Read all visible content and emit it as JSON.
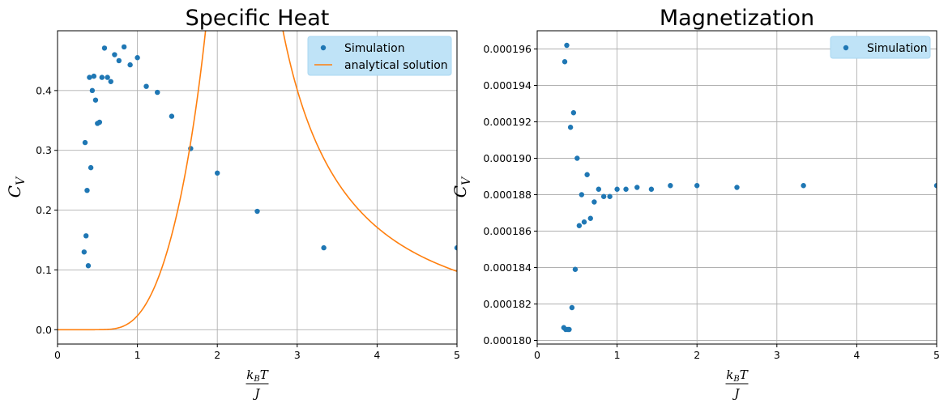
{
  "chart_data": [
    {
      "type": "scatter",
      "title": "Specific Heat",
      "xlabel": "k_BT/J",
      "ylabel": "C_V",
      "xlim": [
        0,
        5
      ],
      "ylim": [
        -0.024,
        0.5
      ],
      "xticks": [
        "0",
        "1",
        "2",
        "3",
        "4",
        "5"
      ],
      "yticks": [
        "0.0",
        "0.1",
        "0.2",
        "0.3",
        "0.4"
      ],
      "grid": true,
      "legend": {
        "position": "top-right",
        "entries": [
          "Simulation",
          "analytical solution"
        ]
      },
      "series": [
        {
          "name": "Simulation",
          "kind": "points",
          "color": "#1f77b4",
          "x": [
            0.333,
            0.345,
            0.357,
            0.37,
            0.385,
            0.4,
            0.417,
            0.435,
            0.455,
            0.476,
            0.5,
            0.526,
            0.556,
            0.588,
            0.625,
            0.667,
            0.714,
            0.769,
            0.833,
            0.909,
            1.0,
            1.111,
            1.25,
            1.429,
            1.667,
            2.0,
            2.5,
            3.333,
            5.0
          ],
          "y": [
            0.13,
            0.313,
            0.157,
            0.233,
            0.107,
            0.422,
            0.271,
            0.4,
            0.424,
            0.384,
            0.345,
            0.347,
            0.422,
            0.471,
            0.422,
            0.415,
            0.46,
            0.45,
            0.473,
            0.443,
            0.455,
            0.407,
            0.397,
            0.357,
            0.303,
            0.262,
            0.198,
            0.137,
            0.137
          ]
        },
        {
          "name": "analytical solution",
          "kind": "line",
          "color": "#ff7f0e",
          "function": "2D Ising exact specific heat"
        }
      ]
    },
    {
      "type": "scatter",
      "title": "Magnetization",
      "xlabel": "k_BT/J",
      "ylabel": "C_V",
      "xlim": [
        0,
        5
      ],
      "ylim": [
        0.0001798,
        0.000197
      ],
      "xticks": [
        "0",
        "1",
        "2",
        "3",
        "4",
        "5"
      ],
      "yticks": [
        "0.000180",
        "0.000182",
        "0.000184",
        "0.000186",
        "0.000188",
        "0.000190",
        "0.000192",
        "0.000194",
        "0.000196"
      ],
      "grid": true,
      "legend": {
        "position": "top-right",
        "entries": [
          "Simulation"
        ]
      },
      "series": [
        {
          "name": "Simulation",
          "kind": "points",
          "color": "#1f77b4",
          "x": [
            0.333,
            0.345,
            0.357,
            0.37,
            0.385,
            0.4,
            0.417,
            0.435,
            0.455,
            0.476,
            0.5,
            0.526,
            0.556,
            0.588,
            0.625,
            0.667,
            0.714,
            0.769,
            0.833,
            0.909,
            1.0,
            1.111,
            1.25,
            1.429,
            1.667,
            2.0,
            2.5,
            3.333,
            5.0
          ],
          "y": [
            0.0001807,
            0.0001953,
            0.0001806,
            0.0001962,
            0.0001806,
            0.0001806,
            0.0001917,
            0.0001818,
            0.0001925,
            0.0001839,
            0.00019,
            0.0001863,
            0.000188,
            0.0001865,
            0.0001891,
            0.0001867,
            0.0001876,
            0.0001883,
            0.0001879,
            0.0001879,
            0.0001883,
            0.0001883,
            0.0001884,
            0.0001883,
            0.0001885,
            0.0001885,
            0.0001884,
            0.0001885,
            0.0001885
          ]
        }
      ]
    }
  ]
}
